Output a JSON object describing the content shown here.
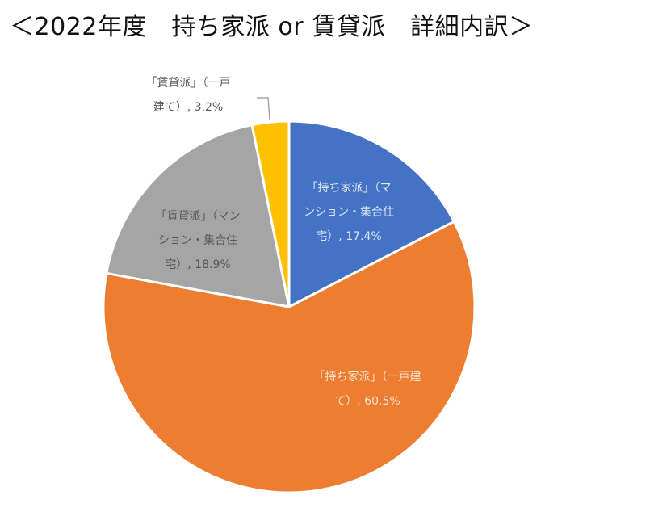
{
  "title": "＜2022年度　持ち家派 or 賃貸派　詳細内訳＞",
  "chart_data": {
    "type": "pie",
    "title": "＜2022年度　持ち家派 or 賃貸派　詳細内訳＞",
    "categories": [
      "「持ち家派」（マンション・集合住宅）",
      "「持ち家派」（一戸建て）",
      "「賃貸派」（マンション・集合住宅）",
      "「賃貸派」（一戸建て）"
    ],
    "values": [
      17.4,
      60.5,
      18.9,
      3.2
    ],
    "unit": "%",
    "colors": [
      "#4472c4",
      "#ed7d31",
      "#a5a5a5",
      "#ffc000"
    ],
    "start_angle_deg": 0,
    "direction": "clockwise",
    "legend": "none",
    "data_labels": [
      "「持ち家派」（マンション・集合住宅）, 17.4%",
      "「持ち家派」（一戸建て）, 60.5%",
      "「賃貸派」（マンション・集合住宅）, 18.9%",
      "「賃貸派」（一戸建て）, 3.2%"
    ]
  },
  "labels": {
    "own_mansion": {
      "line1": "「持ち家派」（マ",
      "line2": "ンション・集合住",
      "line3": "宅）, 17.4%"
    },
    "own_house": {
      "line1": "「持ち家派」（一戸建",
      "line2": "て）, 60.5%"
    },
    "rent_mansion": {
      "line1": "「賃貸派」（マン",
      "line2": "ション・集合住",
      "line3": "宅）, 18.9%"
    },
    "rent_house": {
      "line1": "「賃貸派」（一戸",
      "line2": "建て）, 3.2%"
    }
  }
}
